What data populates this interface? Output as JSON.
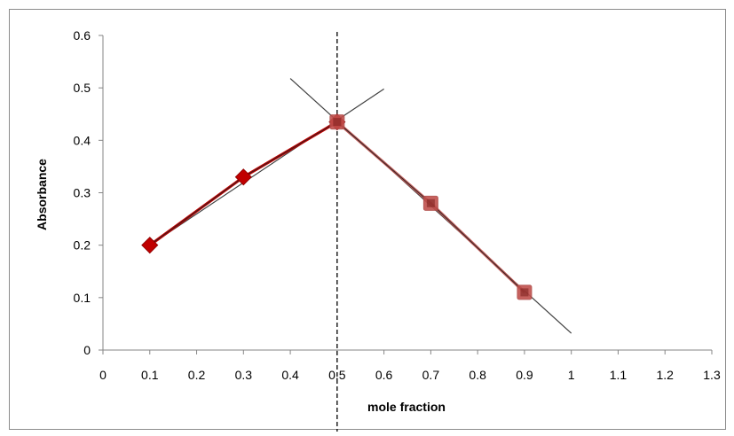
{
  "chart_data": {
    "type": "scatter",
    "xlabel": "mole fraction",
    "ylabel": "Absorbance",
    "xlim": [
      0,
      1.3
    ],
    "ylim": [
      0,
      0.6
    ],
    "x_ticks": [
      "0",
      "0.1",
      "0.2",
      "0.3",
      "0.4",
      "0.5",
      "0.6",
      "0.7",
      "0.8",
      "0.9",
      "1",
      "1.1",
      "1.2",
      "1.3"
    ],
    "y_ticks": [
      "0",
      "0.1",
      "0.2",
      "0.3",
      "0.4",
      "0.5",
      "0.6"
    ],
    "grid": false,
    "series": [
      {
        "marker": "diamond",
        "color": "#c00000",
        "x": [
          0.1,
          0.3,
          0.5
        ],
        "y": [
          0.2,
          0.33,
          0.435
        ]
      },
      {
        "marker": "square",
        "color": "#c0504d",
        "x": [
          0.5,
          0.7,
          0.9
        ],
        "y": [
          0.435,
          0.28,
          0.11
        ]
      }
    ],
    "trendlines": [
      {
        "color": "#404040",
        "x": [
          0.1,
          0.6
        ],
        "y": [
          0.2,
          0.498
        ]
      },
      {
        "color": "#404040",
        "x": [
          0.4,
          1.0
        ],
        "y": [
          0.518,
          0.032
        ]
      }
    ],
    "vertical_line": {
      "x": 0.5,
      "style": "dashed",
      "color": "#000000"
    }
  }
}
